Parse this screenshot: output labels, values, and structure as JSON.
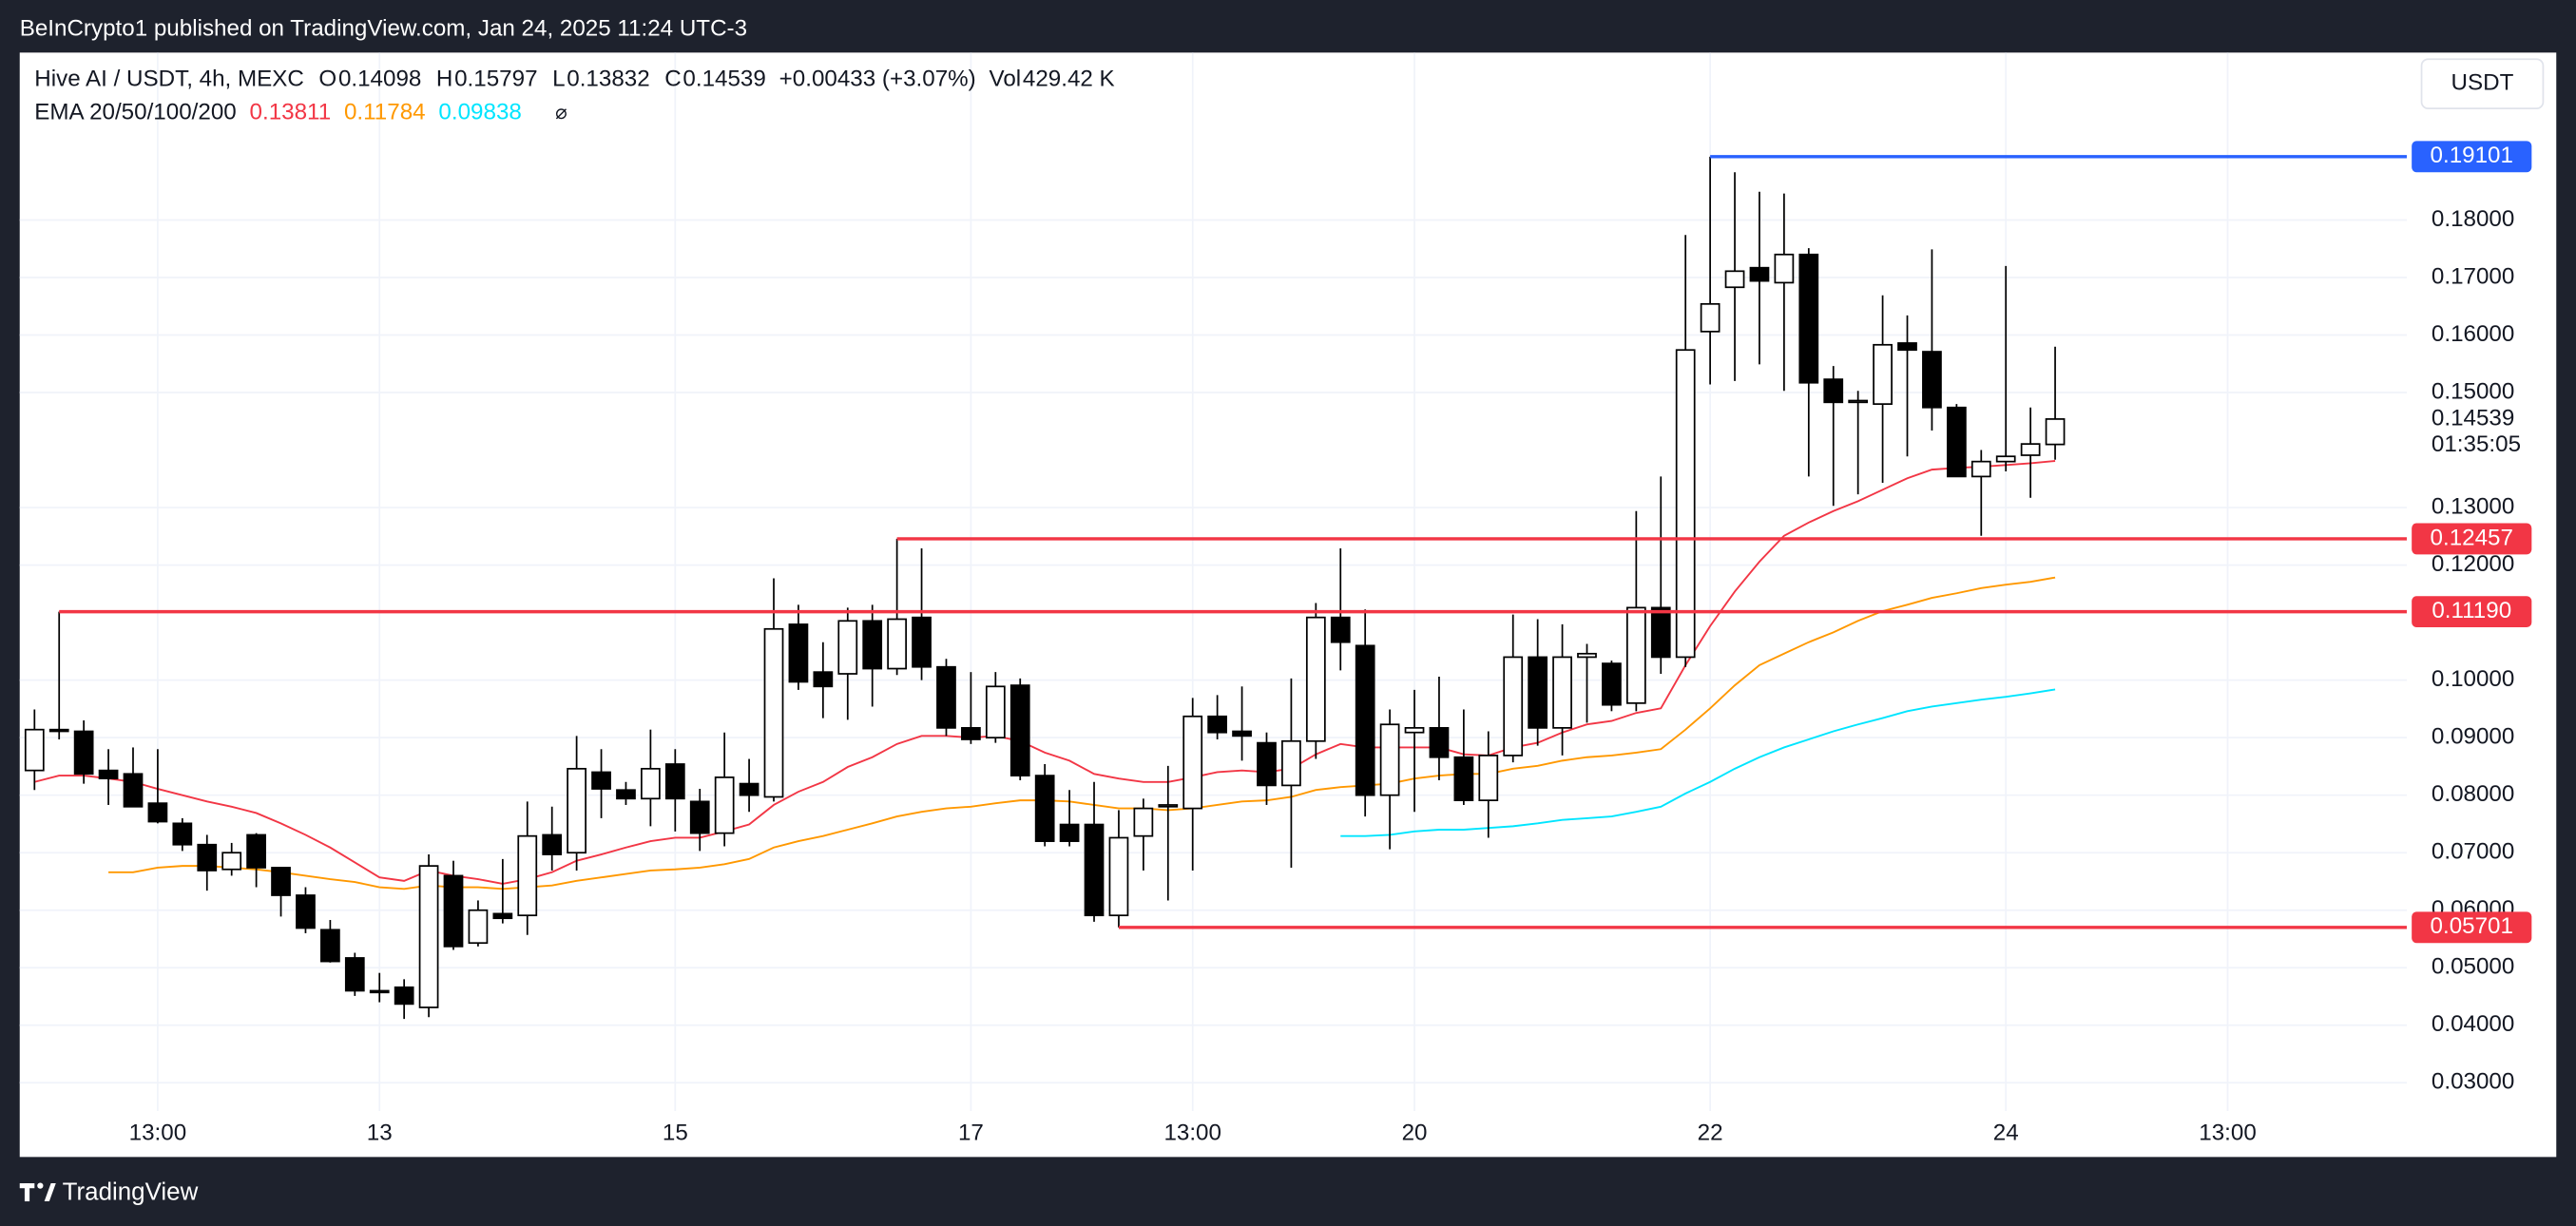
{
  "page": {
    "published": "BeInCrypto1 published on TradingView.com, Jan 24, 2025 11:24 UTC-3",
    "brand": "TradingView",
    "currency_button": "USDT"
  },
  "chart_data": {
    "type": "candlestick",
    "symbol": "Hive AI / USDT, 4h, MEXC",
    "ohlc_labels": [
      "O",
      "H",
      "L",
      "C"
    ],
    "change": "+0.00433 (+3.07%)",
    "volume_label": "Vol",
    "volume": "429.42 K",
    "ema_label": "EMA 20/50/100/200",
    "countdown": "01:35:05",
    "up_color": "#ffffff",
    "down_color": "#000000",
    "open": [
      0.0843,
      0.0914,
      0.0911,
      0.0843,
      0.0837,
      0.0786,
      0.0751,
      0.0714,
      0.0671,
      0.0731,
      0.0674,
      0.0626,
      0.0566,
      0.0517,
      0.046,
      0.0466,
      0.0431,
      0.066,
      0.0543,
      0.0594,
      0.0591,
      0.0731,
      0.07,
      0.084,
      0.0809,
      0.0794,
      0.0854,
      0.0789,
      0.0734,
      0.082,
      0.0797,
      0.1097,
      0.1014,
      0.1011,
      0.1103,
      0.102,
      0.1109,
      0.1023,
      0.0917,
      0.09,
      0.0991,
      0.0834,
      0.0749,
      0.0749,
      0.0591,
      0.0729,
      0.078,
      0.0777,
      0.0937,
      0.0911,
      0.0891,
      0.0817,
      0.0894,
      0.1109,
      0.106,
      0.08,
      0.0909,
      0.0917,
      0.0866,
      0.0791,
      0.0869,
      0.104,
      0.0917,
      0.104,
      0.1029,
      0.096,
      0.1126,
      0.104,
      0.1606,
      0.1683,
      0.1717,
      0.1691,
      0.174,
      0.1523,
      0.1483,
      0.148,
      0.1586,
      0.1571,
      0.1474,
      0.1354,
      0.138,
      0.1391,
      0.14098
    ],
    "high": [
      0.0949,
      0.1119,
      0.093,
      0.088,
      0.0883,
      0.088,
      0.076,
      0.0731,
      0.0717,
      0.0734,
      0.0674,
      0.064,
      0.0583,
      0.0526,
      0.0491,
      0.048,
      0.0697,
      0.0686,
      0.0617,
      0.0689,
      0.0789,
      0.078,
      0.0903,
      0.088,
      0.0823,
      0.0914,
      0.088,
      0.0811,
      0.0909,
      0.0863,
      0.1177,
      0.1131,
      0.1066,
      0.1126,
      0.1131,
      0.12457,
      0.1229,
      0.1037,
      0.1014,
      0.1014,
      0.1003,
      0.0854,
      0.0809,
      0.0823,
      0.0774,
      0.0794,
      0.0851,
      0.0969,
      0.0974,
      0.0989,
      0.0909,
      0.1003,
      0.1134,
      0.1229,
      0.1123,
      0.0949,
      0.0983,
      0.1006,
      0.0949,
      0.0911,
      0.1114,
      0.1106,
      0.1097,
      0.1063,
      0.1034,
      0.1294,
      0.1354,
      0.1774,
      0.19101,
      0.1883,
      0.1849,
      0.1846,
      0.1751,
      0.1546,
      0.1503,
      0.1669,
      0.1634,
      0.1749,
      0.148,
      0.14,
      0.172,
      0.1474,
      0.15797
    ],
    "low": [
      0.0809,
      0.0897,
      0.082,
      0.0783,
      0.0783,
      0.0751,
      0.0703,
      0.0634,
      0.066,
      0.064,
      0.0589,
      0.056,
      0.0509,
      0.0451,
      0.044,
      0.0411,
      0.0414,
      0.0531,
      0.0537,
      0.0577,
      0.0557,
      0.0669,
      0.0669,
      0.076,
      0.0783,
      0.0746,
      0.0737,
      0.0703,
      0.0711,
      0.0771,
      0.0789,
      0.0983,
      0.0934,
      0.0931,
      0.0954,
      0.1009,
      0.1,
      0.0903,
      0.0889,
      0.0891,
      0.0826,
      0.0711,
      0.0711,
      0.058,
      0.05701,
      0.0669,
      0.0617,
      0.0669,
      0.0897,
      0.086,
      0.0783,
      0.0674,
      0.0863,
      0.1017,
      0.0763,
      0.0706,
      0.0771,
      0.0826,
      0.0783,
      0.0726,
      0.0857,
      0.0886,
      0.0869,
      0.0926,
      0.0946,
      0.0946,
      0.1011,
      0.1023,
      0.1514,
      0.152,
      0.1549,
      0.1503,
      0.1354,
      0.1303,
      0.1323,
      0.1343,
      0.1389,
      0.1434,
      0.1354,
      0.1251,
      0.1363,
      0.1317,
      0.13832
    ],
    "close": [
      0.0914,
      0.0911,
      0.0837,
      0.0829,
      0.078,
      0.0754,
      0.0714,
      0.0669,
      0.07,
      0.0674,
      0.0626,
      0.0569,
      0.0511,
      0.046,
      0.0457,
      0.0437,
      0.0677,
      0.0537,
      0.06,
      0.0586,
      0.0729,
      0.0697,
      0.0846,
      0.0811,
      0.0794,
      0.0846,
      0.0794,
      0.0734,
      0.0831,
      0.08,
      0.1089,
      0.0997,
      0.0989,
      0.1103,
      0.102,
      0.1106,
      0.1023,
      0.0917,
      0.0897,
      0.0989,
      0.0834,
      0.072,
      0.072,
      0.0591,
      0.0726,
      0.0777,
      0.0783,
      0.0937,
      0.0909,
      0.0903,
      0.0817,
      0.0894,
      0.1109,
      0.1066,
      0.08,
      0.0923,
      0.0917,
      0.0866,
      0.0791,
      0.0869,
      0.104,
      0.0917,
      0.104,
      0.1046,
      0.0957,
      0.1126,
      0.104,
      0.1574,
      0.1654,
      0.1711,
      0.1694,
      0.174,
      0.1517,
      0.1483,
      0.1486,
      0.1583,
      0.1574,
      0.1474,
      0.1354,
      0.138,
      0.1389,
      0.14106,
      0.14539
    ],
    "series": [
      {
        "color": "#f23645",
        "values": [
          0.0823,
          0.0834,
          0.0834,
          0.0829,
          0.0823,
          0.0811,
          0.08,
          0.0789,
          0.078,
          0.0769,
          0.0751,
          0.0731,
          0.0709,
          0.0683,
          0.0657,
          0.0651,
          0.0669,
          0.066,
          0.0654,
          0.0646,
          0.0654,
          0.0666,
          0.0686,
          0.0697,
          0.0709,
          0.072,
          0.0726,
          0.0726,
          0.0737,
          0.0749,
          0.0783,
          0.0806,
          0.0823,
          0.0849,
          0.0866,
          0.0889,
          0.0903,
          0.0903,
          0.09,
          0.0903,
          0.0894,
          0.0874,
          0.086,
          0.0837,
          0.0829,
          0.0823,
          0.0823,
          0.0831,
          0.084,
          0.0843,
          0.084,
          0.0846,
          0.0871,
          0.0889,
          0.0883,
          0.0883,
          0.0883,
          0.0883,
          0.0871,
          0.0869,
          0.0883,
          0.0891,
          0.0909,
          0.0923,
          0.0929,
          0.0943,
          0.0951,
          0.1026,
          0.1094,
          0.1154,
          0.1206,
          0.1251,
          0.1274,
          0.1294,
          0.1311,
          0.1331,
          0.1351,
          0.1366,
          0.1369,
          0.1371,
          0.1374,
          0.1377,
          0.13811
        ]
      },
      {
        "color": "#ff9800",
        "values": [
          null,
          null,
          null,
          0.0666,
          0.0666,
          0.0674,
          0.0677,
          0.0677,
          0.0674,
          0.0671,
          0.0666,
          0.066,
          0.0654,
          0.0649,
          0.064,
          0.0637,
          0.0643,
          0.064,
          0.064,
          0.0637,
          0.064,
          0.0643,
          0.0651,
          0.0657,
          0.0663,
          0.0669,
          0.0671,
          0.0674,
          0.068,
          0.0689,
          0.0709,
          0.072,
          0.0729,
          0.074,
          0.0751,
          0.0763,
          0.0771,
          0.0777,
          0.078,
          0.0786,
          0.0791,
          0.0791,
          0.0789,
          0.0783,
          0.0777,
          0.0777,
          0.0774,
          0.0777,
          0.0783,
          0.0789,
          0.0791,
          0.0797,
          0.0809,
          0.0814,
          0.0817,
          0.082,
          0.0829,
          0.0834,
          0.0837,
          0.0837,
          0.0846,
          0.0851,
          0.086,
          0.0866,
          0.0869,
          0.0874,
          0.088,
          0.0914,
          0.0951,
          0.0991,
          0.1026,
          0.1046,
          0.1066,
          0.1083,
          0.1103,
          0.112,
          0.1131,
          0.1143,
          0.1151,
          0.116,
          0.1166,
          0.1171,
          0.11784
        ]
      },
      {
        "color": "#00e5ff",
        "values": [
          null,
          null,
          null,
          null,
          null,
          null,
          null,
          null,
          null,
          null,
          null,
          null,
          null,
          null,
          null,
          null,
          null,
          null,
          null,
          null,
          null,
          null,
          null,
          null,
          null,
          null,
          null,
          null,
          null,
          null,
          null,
          null,
          null,
          null,
          null,
          null,
          null,
          null,
          null,
          null,
          null,
          null,
          null,
          null,
          null,
          null,
          null,
          null,
          null,
          null,
          null,
          null,
          null,
          0.0729,
          0.0729,
          0.0731,
          0.0737,
          0.074,
          0.074,
          0.0743,
          0.0746,
          0.0751,
          0.0757,
          0.076,
          0.0763,
          0.0771,
          0.078,
          0.0803,
          0.0823,
          0.0846,
          0.0866,
          0.0883,
          0.0897,
          0.0911,
          0.0923,
          0.0934,
          0.0946,
          0.0954,
          0.096,
          0.0966,
          0.0971,
          0.0977,
          0.09838
        ]
      }
    ],
    "levels": [
      {
        "value": 0.19101,
        "color": "#2962ff"
      },
      {
        "value": 0.12457,
        "color": "#f23645"
      },
      {
        "value": 0.1119,
        "label": "0.11190",
        "color": "#f23645"
      },
      {
        "value": 0.05701,
        "color": "#f23645"
      }
    ],
    "xlim": [
      -0.6,
      96.27
    ],
    "xticks": [
      {
        "value": 5,
        "label": "13:00"
      },
      {
        "value": 14,
        "label": "13"
      },
      {
        "value": 26,
        "label": "15"
      },
      {
        "value": 38,
        "label": "17"
      },
      {
        "value": 47,
        "label": "13:00"
      },
      {
        "value": 56,
        "label": "20"
      },
      {
        "value": 68,
        "label": "22"
      },
      {
        "value": 80,
        "label": "24"
      },
      {
        "value": 89,
        "label": "13:00"
      }
    ],
    "ylim": [
      0.0171,
      0.2091
    ],
    "yticks": [
      {
        "value": 0.03,
        "label": "0.03000"
      },
      {
        "value": 0.04,
        "label": "0.04000"
      },
      {
        "value": 0.05,
        "label": "0.05000"
      },
      {
        "value": 0.06,
        "label": "0.06000"
      },
      {
        "value": 0.07,
        "label": "0.07000"
      },
      {
        "value": 0.08,
        "label": "0.08000"
      },
      {
        "value": 0.09,
        "label": "0.09000"
      },
      {
        "value": 0.1,
        "label": "0.10000"
      },
      {
        "value": 0.12,
        "label": "0.12000"
      },
      {
        "value": 0.13,
        "label": "0.13000"
      },
      {
        "value": 0.15,
        "label": "0.15000"
      },
      {
        "value": 0.16,
        "label": "0.16000"
      },
      {
        "value": 0.17,
        "label": "0.17000"
      },
      {
        "value": 0.18,
        "label": "0.18000"
      }
    ],
    "grid": true
  }
}
